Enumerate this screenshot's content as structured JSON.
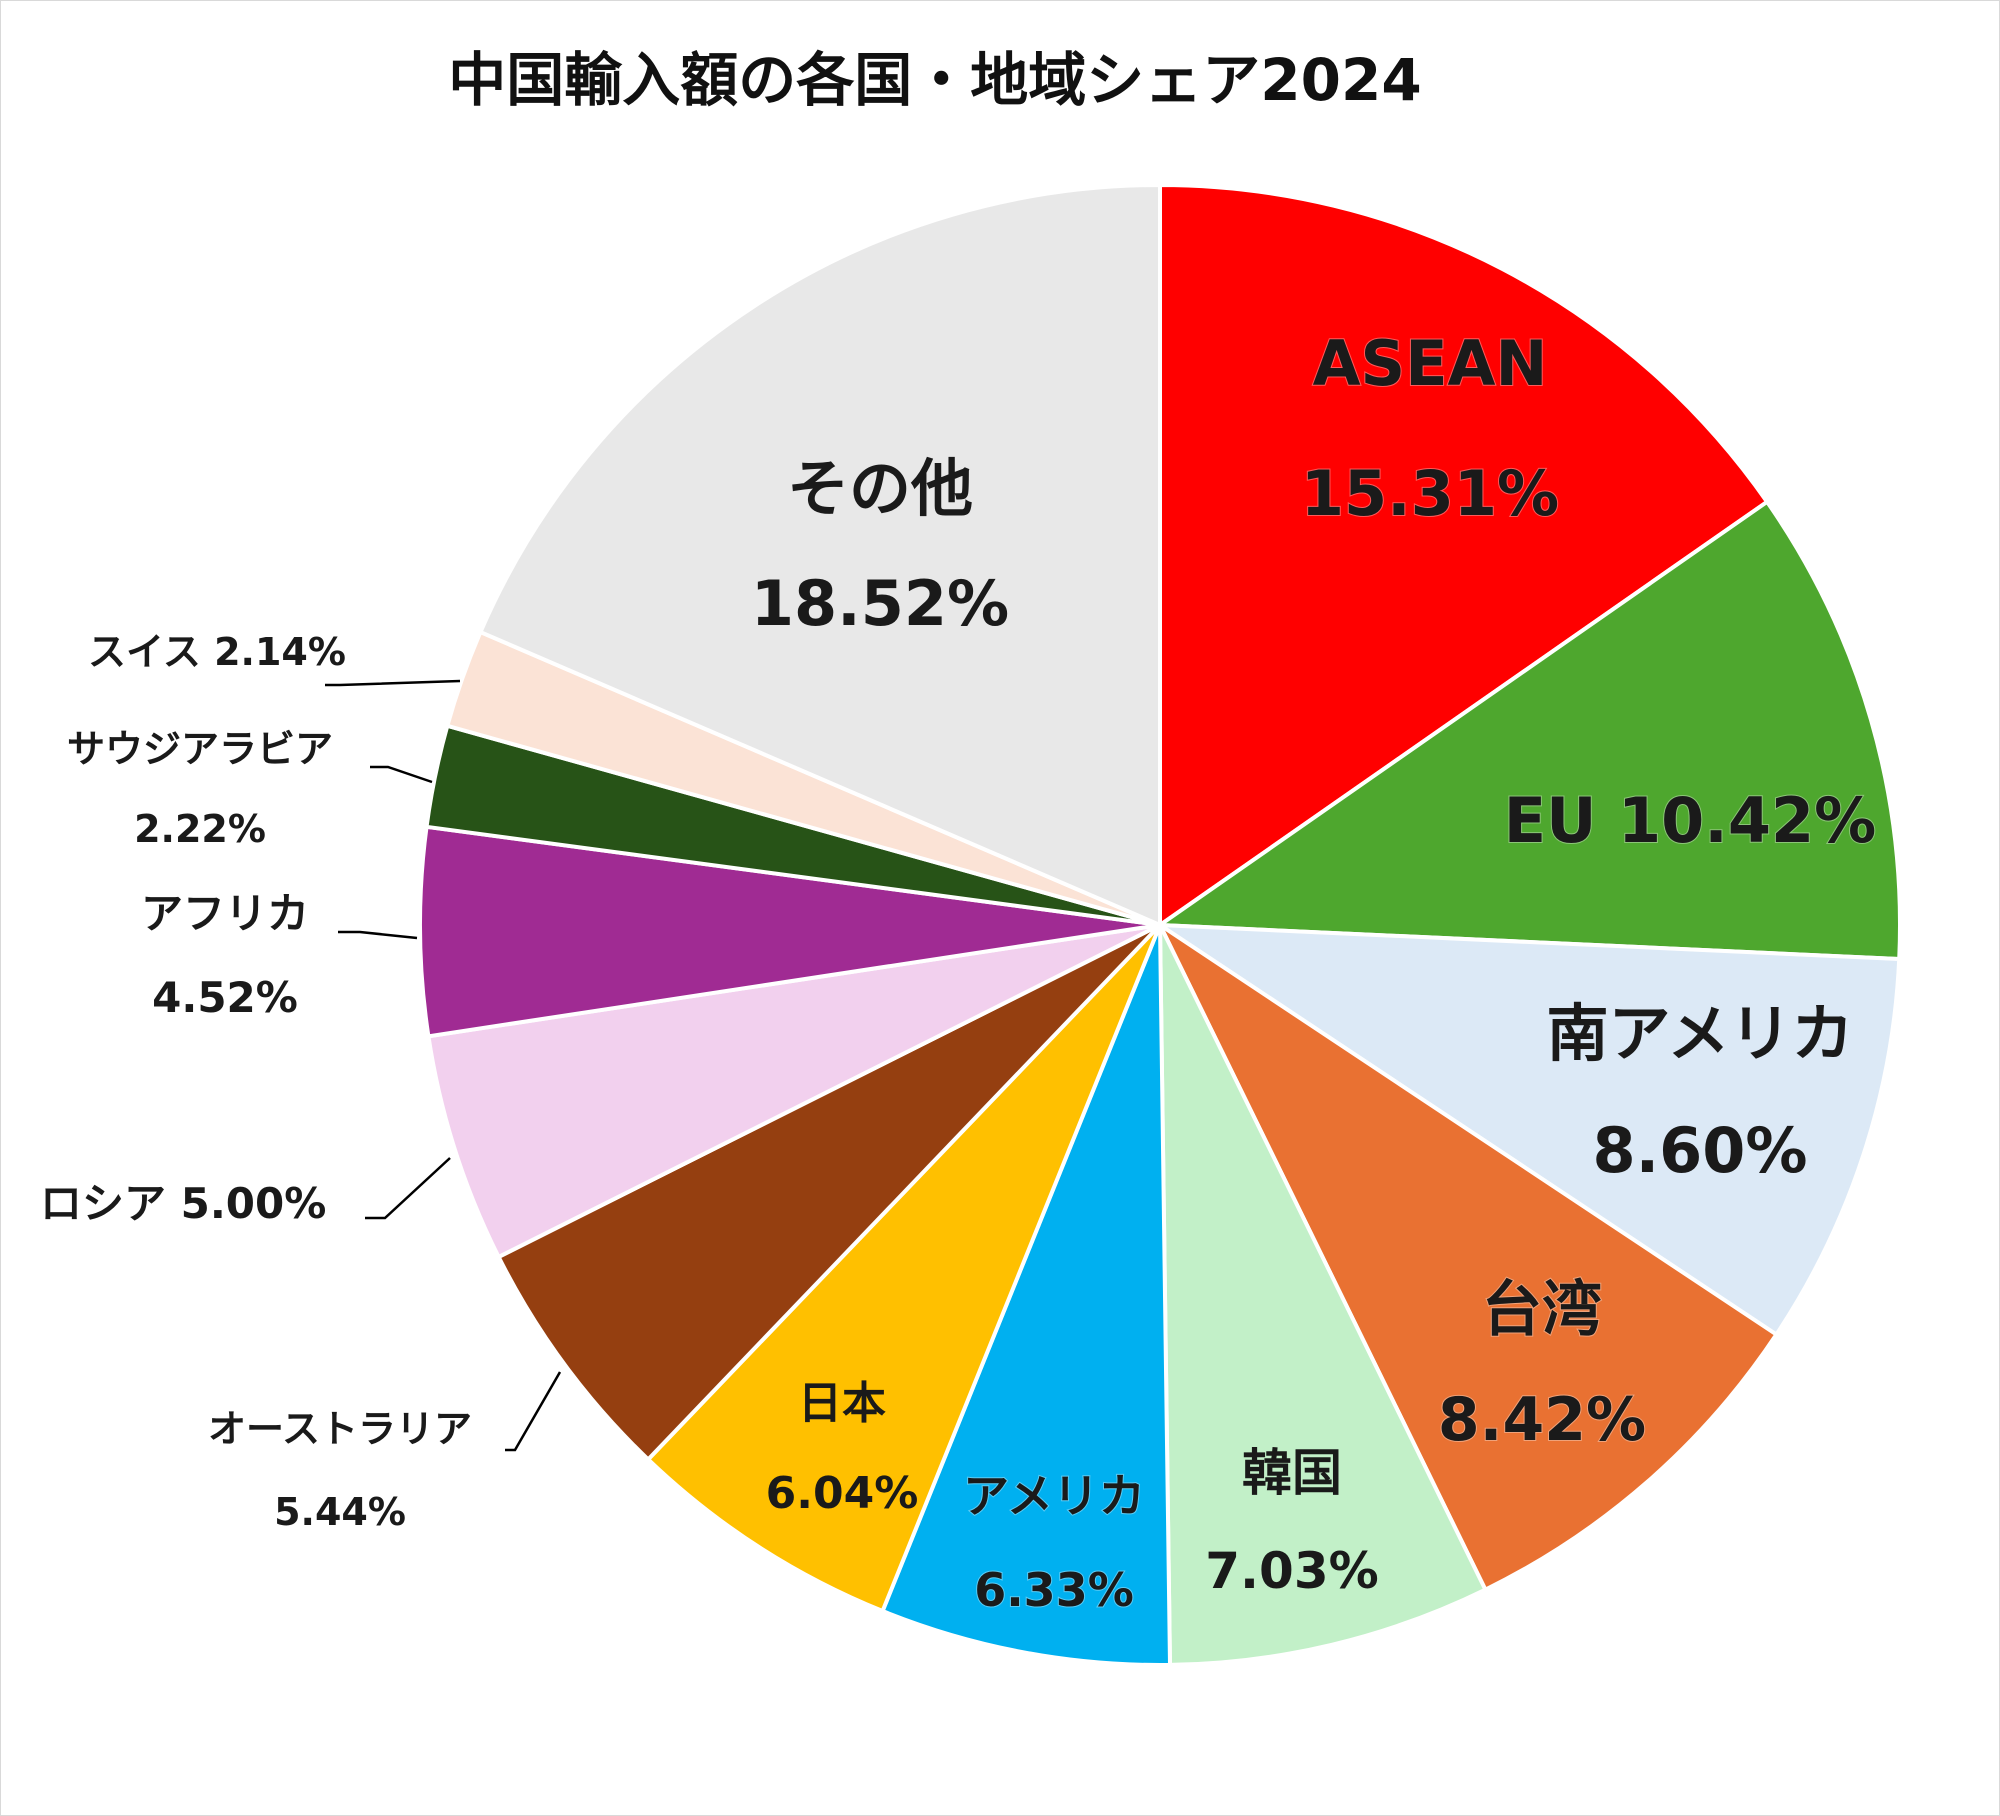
{
  "chart_data": {
    "type": "pie",
    "title": "中国輸入額の各国・地域シェア2024",
    "slices": [
      {
        "name": "ASEAN",
        "value": 15.31,
        "label": "15.31%",
        "color": "#FF0000"
      },
      {
        "name": "EU",
        "value": 10.42,
        "label": "10.42%",
        "color": "#4EA72E"
      },
      {
        "name": "南アメリカ",
        "value": 8.6,
        "label": "8.60%",
        "color": "#DCE9F6"
      },
      {
        "name": "台湾",
        "value": 8.42,
        "label": "8.42%",
        "color": "#E97132"
      },
      {
        "name": "韓国",
        "value": 7.03,
        "label": "7.03%",
        "color": "#C2F0C8"
      },
      {
        "name": "アメリカ",
        "value": 6.33,
        "label": "6.33%",
        "color": "#00B0F0"
      },
      {
        "name": "日本",
        "value": 6.04,
        "label": "6.04%",
        "color": "#FFC000"
      },
      {
        "name": "オーストラリア",
        "value": 5.44,
        "label": "5.44%",
        "color": "#953F10"
      },
      {
        "name": "ロシア",
        "value": 5.0,
        "label": "5.00%",
        "color": "#F2D0EE"
      },
      {
        "name": "アフリカ",
        "value": 4.52,
        "label": "4.52%",
        "color": "#A02B93"
      },
      {
        "name": "サウジアラビア",
        "value": 2.22,
        "label": "2.22%",
        "color": "#275317"
      },
      {
        "name": "スイス",
        "value": 2.14,
        "label": "2.14%",
        "color": "#FBE3D6"
      },
      {
        "name": "その他",
        "value": 18.52,
        "label": "18.52%",
        "color": "#E8E8E8"
      }
    ]
  }
}
